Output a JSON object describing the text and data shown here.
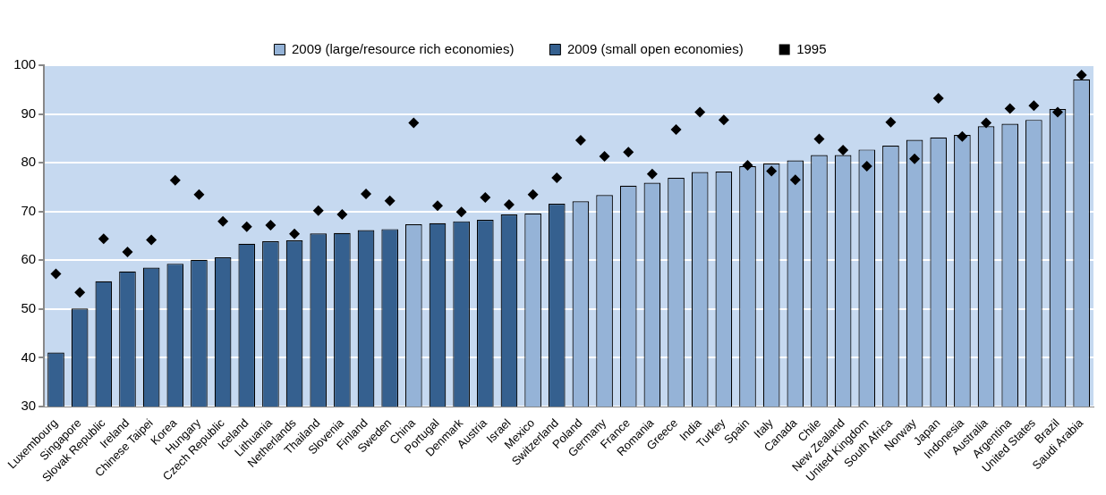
{
  "chart_data": {
    "type": "bar",
    "categories": [
      "Luxembourg",
      "Singapore",
      "Slovak Republic",
      "Ireland",
      "Chinese Taipei",
      "Korea",
      "Hungary",
      "Czech Republic",
      "Iceland",
      "Lithuania",
      "Netherlands",
      "Thailand",
      "Slovenia",
      "Finland",
      "Sweden",
      "China",
      "Portugal",
      "Denmark",
      "Austria",
      "Israel",
      "Mexico",
      "Switzerland",
      "Poland",
      "Germany",
      "France",
      "Romania",
      "Greece",
      "India",
      "Turkey",
      "Spain",
      "Italy",
      "Canada",
      "Chile",
      "New Zealand",
      "United Kingdom",
      "South Africa",
      "Norway",
      "Japan",
      "Indonesia",
      "Australia",
      "Argentina",
      "United States",
      "Brazil",
      "Saudi Arabia"
    ],
    "series": [
      {
        "name": "2009 (large/resource rich economies)",
        "color": "#95b3d7",
        "values": [
          null,
          null,
          null,
          null,
          null,
          null,
          null,
          null,
          null,
          null,
          null,
          null,
          null,
          null,
          null,
          67.4,
          null,
          null,
          null,
          null,
          69.6,
          null,
          72.1,
          73.4,
          75.3,
          75.9,
          76.9,
          78.1,
          78.2,
          79.3,
          79.9,
          80.5,
          81.6,
          81.6,
          82.7,
          83.5,
          84.7,
          85.2,
          85.7,
          87.5,
          88.0,
          88.8,
          91.0,
          97.1
        ]
      },
      {
        "name": "2009 (small open economies)",
        "color": "#35608f",
        "values": [
          41.1,
          50.1,
          55.7,
          57.7,
          58.5,
          59.3,
          60.1,
          60.6,
          63.4,
          63.9,
          64.1,
          65.5,
          65.6,
          66.2,
          66.4,
          null,
          67.6,
          68.0,
          68.3,
          69.4,
          null,
          71.6,
          null,
          null,
          null,
          null,
          null,
          null,
          null,
          null,
          null,
          null,
          null,
          null,
          null,
          null,
          null,
          null,
          null,
          null,
          null,
          null,
          null,
          null
        ]
      },
      {
        "name": "1995",
        "type": "scatter",
        "color": "#000000",
        "values": [
          57.2,
          53.4,
          64.4,
          61.7,
          64.2,
          76.4,
          73.5,
          68.0,
          66.9,
          67.2,
          65.4,
          70.2,
          69.4,
          73.6,
          72.2,
          88.2,
          71.2,
          69.9,
          72.9,
          71.4,
          73.5,
          76.9,
          84.6,
          81.3,
          82.2,
          77.7,
          86.8,
          90.4,
          88.8,
          79.5,
          78.3,
          76.5,
          84.9,
          82.6,
          79.3,
          88.3,
          80.8,
          93.2,
          85.4,
          88.2,
          91.1,
          91.7,
          90.4,
          98.0
        ]
      }
    ],
    "ylim": [
      30,
      100
    ],
    "yticks": [
      30,
      40,
      50,
      60,
      70,
      80,
      90,
      100
    ],
    "grid": "y",
    "legend": "top",
    "marker": "diamond"
  }
}
